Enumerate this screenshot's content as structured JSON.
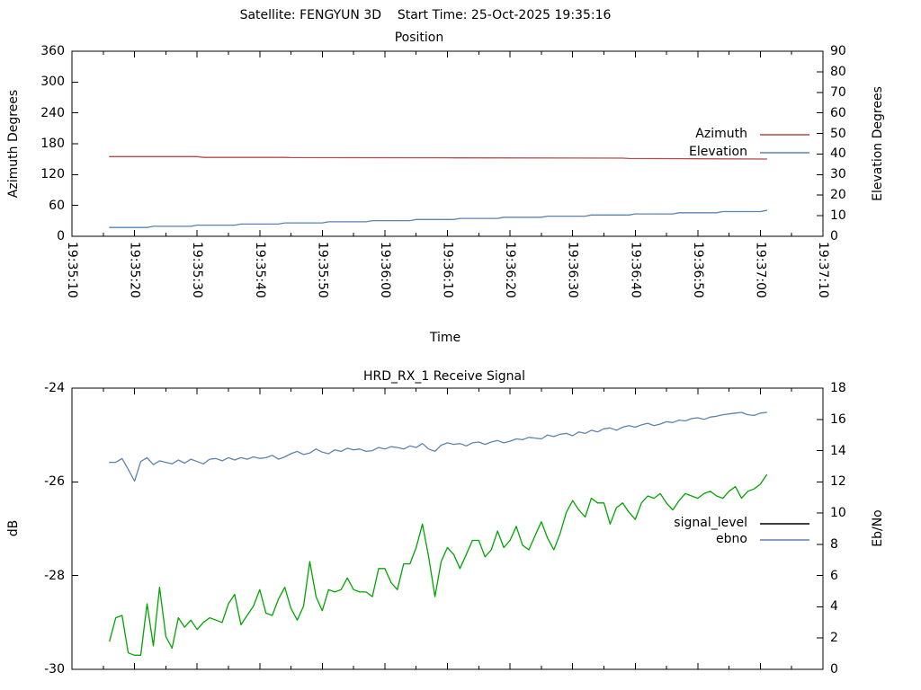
{
  "header": {
    "title": "Satellite: FENGYUN 3D    Start Time: 25-Oct-2025 19:35:16"
  },
  "colors": {
    "azimuth": "#bc4a4a",
    "elevation": "#5b84b1",
    "signal_level_line": "#00a500",
    "signal_level_legend": "#000000",
    "ebno": "#5b84b1",
    "frame": "#000000",
    "background": "#ffffff"
  },
  "chart_data": [
    {
      "type": "line",
      "title": "Position",
      "xlabel": "Time",
      "grid": false,
      "legend_position": "right-center",
      "x": {
        "min": 0,
        "max": 120,
        "major_step": 10,
        "minor_step": 5,
        "unit": "seconds after 19:35:10",
        "tick_labels": [
          "19:35:10",
          "19:35:20",
          "19:35:30",
          "19:35:40",
          "19:35:50",
          "19:36:00",
          "19:36:10",
          "19:36:20",
          "19:36:30",
          "19:36:40",
          "19:36:50",
          "19:37:00",
          "19:37:10"
        ]
      },
      "y_left": {
        "label": "Azimuth Degrees",
        "min": 0,
        "max": 360,
        "major_step": 60,
        "tick_labels": [
          "0",
          "60",
          "120",
          "180",
          "240",
          "300",
          "360"
        ]
      },
      "y_right": {
        "label": "Elevation Degrees",
        "min": 0,
        "max": 90,
        "major_step": 10,
        "tick_labels": [
          "0",
          "10",
          "20",
          "30",
          "40",
          "50",
          "60",
          "70",
          "80",
          "90"
        ]
      },
      "series": [
        {
          "name": "Azimuth",
          "axis": "left",
          "color": "#bc4a4a",
          "t": [
            6,
            20,
            21,
            34,
            35,
            60,
            61,
            88,
            89,
            100,
            111
          ],
          "values": [
            155.0,
            155.0,
            153.4,
            153.4,
            153.1,
            152.8,
            152.5,
            152.1,
            151.3,
            150.8,
            150.3
          ]
        },
        {
          "name": "Elevation",
          "axis": "right",
          "color": "#5b84b1",
          "t": [
            6,
            12,
            13,
            19,
            20,
            26,
            27,
            33,
            34,
            40,
            41,
            47,
            48,
            54,
            55,
            61,
            62,
            68,
            69,
            75,
            76,
            82,
            83,
            89,
            90,
            96,
            97,
            103,
            104,
            110,
            111
          ],
          "values": [
            4.3,
            4.3,
            4.85,
            4.85,
            5.4,
            5.4,
            5.95,
            5.95,
            6.5,
            6.5,
            7.05,
            7.05,
            7.6,
            7.6,
            8.15,
            8.15,
            8.7,
            8.7,
            9.25,
            9.25,
            9.8,
            9.8,
            10.35,
            10.35,
            10.9,
            10.9,
            11.45,
            11.45,
            12.0,
            12.0,
            12.6
          ]
        }
      ]
    },
    {
      "type": "line",
      "title": "HRD_RX_1 Receive Signal",
      "xlabel": "",
      "grid": false,
      "legend_position": "right-center",
      "x": {
        "min": 0,
        "max": 120,
        "major_step": 10,
        "minor_step": 5,
        "unit": "seconds after 19:35:10",
        "show_labels": false,
        "tick_labels": []
      },
      "y_left": {
        "label": "dB",
        "min": -30,
        "max": -24,
        "major_step": 2,
        "tick_labels": [
          "-30",
          "-28",
          "-26",
          "-24"
        ]
      },
      "y_right": {
        "label": "Eb/No",
        "min": 0,
        "max": 18,
        "major_step": 2,
        "tick_labels": [
          "0",
          "2",
          "4",
          "6",
          "8",
          "10",
          "12",
          "14",
          "16",
          "18"
        ]
      },
      "series": [
        {
          "name": "signal_level",
          "axis": "left",
          "color": "#00a500",
          "legend_color": "#000000",
          "t_start": 6,
          "t_step": 1,
          "values": [
            -29.4,
            -28.9,
            -28.85,
            -29.65,
            -29.7,
            -29.7,
            -28.6,
            -29.5,
            -28.25,
            -29.3,
            -29.55,
            -28.9,
            -29.1,
            -28.95,
            -29.15,
            -29.0,
            -28.9,
            -28.95,
            -29.0,
            -28.6,
            -28.4,
            -29.05,
            -28.85,
            -28.65,
            -28.3,
            -28.8,
            -28.85,
            -28.5,
            -28.25,
            -28.7,
            -28.95,
            -28.65,
            -27.7,
            -28.45,
            -28.75,
            -28.3,
            -28.35,
            -28.3,
            -28.05,
            -28.3,
            -28.35,
            -28.35,
            -28.45,
            -27.85,
            -27.85,
            -28.15,
            -28.3,
            -27.75,
            -27.75,
            -27.4,
            -26.9,
            -27.6,
            -28.45,
            -27.7,
            -27.4,
            -27.55,
            -27.85,
            -27.55,
            -27.25,
            -27.25,
            -27.6,
            -27.45,
            -27.05,
            -27.4,
            -27.25,
            -26.95,
            -27.35,
            -27.45,
            -27.15,
            -26.85,
            -27.2,
            -27.45,
            -27.1,
            -26.65,
            -26.4,
            -26.6,
            -26.75,
            -26.35,
            -26.45,
            -26.45,
            -26.9,
            -26.55,
            -26.45,
            -26.65,
            -26.8,
            -26.45,
            -26.3,
            -26.35,
            -26.25,
            -26.45,
            -26.6,
            -26.4,
            -26.25,
            -26.3,
            -26.35,
            -26.25,
            -26.2,
            -26.3,
            -26.35,
            -26.2,
            -26.1,
            -26.35,
            -26.2,
            -26.15,
            -26.05,
            -25.85
          ]
        },
        {
          "name": "ebno",
          "axis": "right",
          "color": "#5b84b1",
          "t_start": 6,
          "t_step": 1,
          "values": [
            13.25,
            13.25,
            13.5,
            12.8,
            12.05,
            13.3,
            13.55,
            13.1,
            13.35,
            13.25,
            13.15,
            13.4,
            13.2,
            13.45,
            13.3,
            13.15,
            13.45,
            13.5,
            13.35,
            13.55,
            13.4,
            13.55,
            13.45,
            13.6,
            13.5,
            13.55,
            13.7,
            13.45,
            13.6,
            13.8,
            13.95,
            13.75,
            13.85,
            14.1,
            13.9,
            13.8,
            14.05,
            13.95,
            14.15,
            14.05,
            14.1,
            13.95,
            14.0,
            14.2,
            14.1,
            14.25,
            14.2,
            14.1,
            14.3,
            14.2,
            14.45,
            14.1,
            13.95,
            14.35,
            14.5,
            14.4,
            14.45,
            14.3,
            14.5,
            14.55,
            14.4,
            14.55,
            14.65,
            14.5,
            14.6,
            14.75,
            14.7,
            14.85,
            14.8,
            14.75,
            15.0,
            14.9,
            15.05,
            15.1,
            14.95,
            15.2,
            15.1,
            15.3,
            15.2,
            15.4,
            15.45,
            15.3,
            15.5,
            15.6,
            15.5,
            15.65,
            15.75,
            15.6,
            15.7,
            15.85,
            15.8,
            15.95,
            15.9,
            16.05,
            16.1,
            16.0,
            16.15,
            16.2,
            16.3,
            16.35,
            16.4,
            16.45,
            16.3,
            16.25,
            16.4,
            16.45
          ]
        }
      ]
    }
  ]
}
